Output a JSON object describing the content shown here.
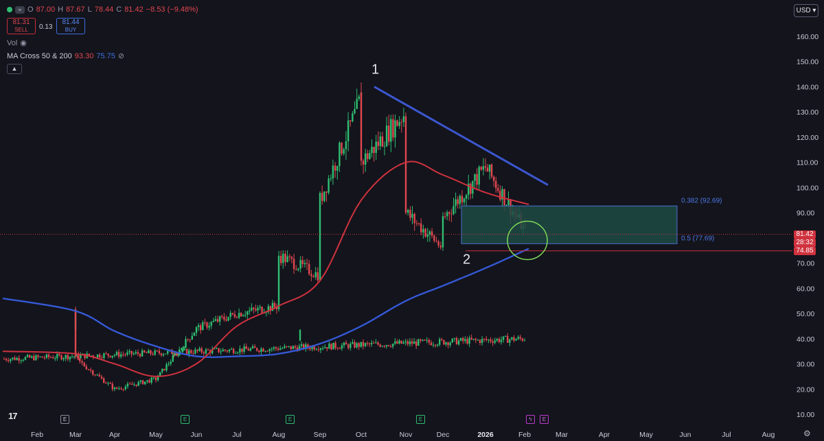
{
  "header": {
    "open_label": "O",
    "open": "87.00",
    "high_label": "H",
    "high": "87.67",
    "low_label": "L",
    "low": "78.44",
    "close_label": "C",
    "close": "81.42",
    "change": "−8.53 (−9.48%)",
    "sell_price": "81.31",
    "sell_label": "SELL",
    "spread": "0.13",
    "buy_price": "81.44",
    "buy_label": "BUY",
    "vol_label": "Vol",
    "indicator_name": "MA Cross 50 & 200",
    "ma50_value": "93.30",
    "ma200_value": "75.75",
    "collapse_icon": "chevron-up-icon"
  },
  "currency": "USD",
  "price_tags": {
    "last_price": "81.42",
    "countdown": "28:32",
    "support_level": "74.85"
  },
  "annotations": {
    "peak_label": "1",
    "trough_label": "2",
    "fib_382": "0.382 (92.69)",
    "fib_05": "0.5 (77.69)"
  },
  "events": [
    {
      "label": "E",
      "month": "Mar"
    },
    {
      "label": "E",
      "month": "Jun"
    },
    {
      "label": "E",
      "month": "Aug"
    },
    {
      "label": "E",
      "month": "Nov"
    },
    {
      "label": "E",
      "month": "Feb"
    }
  ],
  "colors": {
    "background": "#13141c",
    "up": "#2fbf71",
    "down": "#e2474f",
    "ma50": "#d0323e",
    "ma200": "#3559d6",
    "trendline": "#3c57d0",
    "zone_fill": "#1f4a44",
    "circle": "#7ed957"
  },
  "chart_data": {
    "type": "candlestick",
    "y_axis": {
      "min": 10,
      "max": 160,
      "ticks": [
        "160.00",
        "150.00",
        "140.00",
        "130.00",
        "120.00",
        "110.00",
        "100.00",
        "90.00",
        "80.00",
        "70.00",
        "60.00",
        "50.00",
        "40.00",
        "30.00",
        "20.00",
        "10.00"
      ],
      "scale": "linear",
      "position": "right"
    },
    "x_axis": {
      "ticks": [
        "Feb",
        "Mar",
        "Apr",
        "May",
        "Jun",
        "Jul",
        "Aug",
        "Sep",
        "Oct",
        "Nov",
        "Dec",
        "2026",
        "Feb",
        "Mar",
        "Apr",
        "May",
        "Jun",
        "Jul",
        "Aug"
      ]
    },
    "grid": false,
    "price_path": [
      {
        "month": "Feb",
        "price": 32
      },
      {
        "month": "Feb",
        "price": 40
      },
      {
        "month": "Mar",
        "price": 50
      },
      {
        "month": "Mar",
        "price": 32
      },
      {
        "month": "Apr",
        "price": 20
      },
      {
        "month": "May",
        "price": 24
      },
      {
        "month": "Jun",
        "price": 44
      },
      {
        "month": "Jul",
        "price": 50
      },
      {
        "month": "Aug",
        "price": 53
      },
      {
        "month": "Aug",
        "price": 73
      },
      {
        "month": "Sep",
        "price": 65
      },
      {
        "month": "Sep",
        "price": 95
      },
      {
        "month": "Oct",
        "price": 135
      },
      {
        "month": "Oct",
        "price": 110
      },
      {
        "month": "Nov",
        "price": 130
      },
      {
        "month": "Nov",
        "price": 90
      },
      {
        "month": "Dec",
        "price": 76
      },
      {
        "month": "Dec",
        "price": 88
      },
      {
        "month": "2026",
        "price": 108
      },
      {
        "month": "Feb",
        "price": 81.42
      }
    ],
    "series": [
      {
        "name": "MA 50",
        "last_value": 93.3,
        "points": [
          {
            "month": "Feb",
            "value": 35
          },
          {
            "month": "Mar",
            "value": 34
          },
          {
            "month": "Apr",
            "value": 30
          },
          {
            "month": "May",
            "value": 25
          },
          {
            "month": "Jun",
            "value": 30
          },
          {
            "month": "Jul",
            "value": 45
          },
          {
            "month": "Aug",
            "value": 53
          },
          {
            "month": "Sep",
            "value": 63
          },
          {
            "month": "Oct",
            "value": 95
          },
          {
            "month": "Nov",
            "value": 110
          },
          {
            "month": "Dec",
            "value": 105
          },
          {
            "month": "2026",
            "value": 98
          },
          {
            "month": "Feb",
            "value": 93.3
          }
        ]
      },
      {
        "name": "MA 200",
        "last_value": 75.75,
        "points": [
          {
            "month": "Feb",
            "value": 56
          },
          {
            "month": "Mar",
            "value": 51
          },
          {
            "month": "Apr",
            "value": 43
          },
          {
            "month": "May",
            "value": 37
          },
          {
            "month": "Jun",
            "value": 33
          },
          {
            "month": "Jul",
            "value": 33
          },
          {
            "month": "Aug",
            "value": 34
          },
          {
            "month": "Sep",
            "value": 38
          },
          {
            "month": "Oct",
            "value": 45
          },
          {
            "month": "Nov",
            "value": 55
          },
          {
            "month": "Dec",
            "value": 61
          },
          {
            "month": "2026",
            "value": 68
          },
          {
            "month": "Feb",
            "value": 75.75
          }
        ]
      }
    ],
    "trendline": {
      "from": {
        "month": "Oct",
        "price": 140
      },
      "to": {
        "month": "Feb",
        "price": 101
      }
    },
    "zone": {
      "from_month": "Dec",
      "to_month": "Apr",
      "top": 92.69,
      "bottom": 77.69
    },
    "support_line": 74.85,
    "last_price_line": 81.42
  }
}
